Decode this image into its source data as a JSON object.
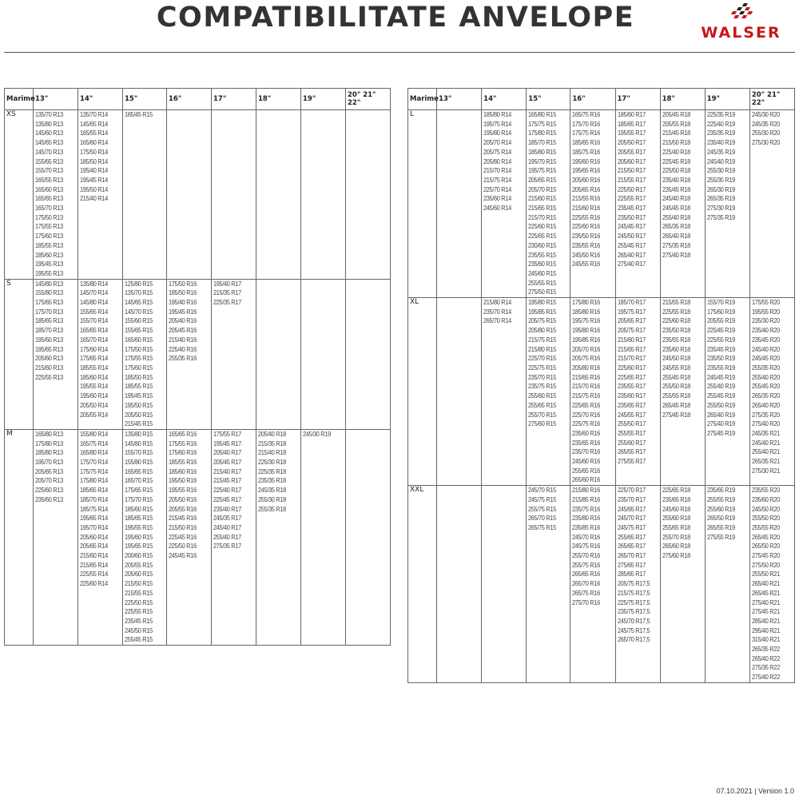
{
  "document": {
    "title": "COMPATIBILITATE ANVELOPE",
    "logo_text": "WALSER",
    "brand_color": "#c8161d",
    "footer": "07.10.2021 | Version 1.0"
  },
  "headers": [
    "Marime",
    "13\"",
    "14\"",
    "15\"",
    "16\"",
    "17\"",
    "18\"",
    "19\"",
    "20\" 21\" 22\""
  ],
  "left_table": [
    {
      "size": "XS",
      "cells": [
        [
          "135/70 R13",
          "135/80 R13",
          "145/60 R13",
          "145/65 R13",
          "145/70 R13",
          "155/65 R13",
          "155/70 R13",
          "165/55 R13",
          "165/60 R13",
          "165/65 R13",
          "165/70 R13",
          "175/50 R13",
          "175/55 R13",
          "175/60 R13",
          "185/55 R13",
          "185/60 R13",
          "195/45 R13",
          "195/55 R13"
        ],
        [
          "135/70 R14",
          "145/65 R14",
          "165/55 R14",
          "165/60 R14",
          "175/50 R14",
          "185/50 R14",
          "195/40 R14",
          "195/45 R14",
          "195/50 R14",
          "215/40 R14"
        ],
        [
          "185/45 R15"
        ],
        [],
        [],
        [],
        [],
        []
      ]
    },
    {
      "size": "S",
      "cells": [
        [
          "145/80 R13",
          "155/80 R13",
          "175/65 R13",
          "175/70 R13",
          "185/65 R13",
          "185/70 R13",
          "195/60 R13",
          "195/65 R13",
          "205/60 R13",
          "215/60 R13",
          "225/55 R13"
        ],
        [
          "135/80 R14",
          "145/70 R14",
          "145/80 R14",
          "155/65 R14",
          "155/70 R14",
          "165/65 R14",
          "165/70 R14",
          "175/60 R14",
          "175/65 R14",
          "185/55 R14",
          "185/60 R14",
          "195/55 R14",
          "195/60 R14",
          "205/50 R14",
          "205/55 R14"
        ],
        [
          "125/80 R15",
          "135/70 R15",
          "145/65 R15",
          "145/70 R15",
          "155/60 R15",
          "155/65 R15",
          "165/60 R15",
          "175/50 R15",
          "175/55 R15",
          "175/60 R15",
          "185/50 R15",
          "185/55 R15",
          "195/45 R15",
          "195/50 R15",
          "205/50 R15",
          "215/45 R15"
        ],
        [
          "175/50 R16",
          "185/50 R16",
          "195/40 R16",
          "195/45 R16",
          "205/40 R16",
          "205/45 R16",
          "215/40 R16",
          "225/40 R16",
          "255/35 R16"
        ],
        [
          "195/40 R17",
          "215/35 R17",
          "225/35 R17"
        ],
        [],
        [],
        []
      ]
    },
    {
      "size": "M",
      "cells": [
        [
          "165/80 R13",
          "175/80 R13",
          "185/80 R13",
          "195/70 R13",
          "205/65 R13",
          "205/70 R13",
          "225/60 R13",
          "235/60 R13"
        ],
        [
          "155/80 R14",
          "165/75 R14",
          "165/80 R14",
          "175/70 R14",
          "175/75 R14",
          "175/80 R14",
          "185/65 R14",
          "185/70 R14",
          "185/75 R14",
          "195/65 R14",
          "195/70 R14",
          "205/60 R14",
          "205/65 R14",
          "215/60 R14",
          "215/65 R14",
          "225/55 R14",
          "225/60 R14"
        ],
        [
          "135/80 R15",
          "145/80 R15",
          "155/70 R15",
          "155/80 R15",
          "165/65 R15",
          "165/70 R15",
          "175/65 R15",
          "175/70 R15",
          "185/60 R15",
          "185/65 R15",
          "195/55 R15",
          "195/60 R15",
          "195/65 R15",
          "200/60 R15",
          "205/55 R15",
          "205/60 R15",
          "215/50 R15",
          "215/55 R15",
          "225/50 R15",
          "225/55 R15",
          "235/45 R15",
          "245/50 R15",
          "255/45 R15"
        ],
        [
          "165/65 R16",
          "175/55 R16",
          "175/60 R16",
          "185/55 R16",
          "185/60 R16",
          "195/50 R16",
          "195/55 R16",
          "205/50 R16",
          "205/55 R16",
          "215/45 R16",
          "215/50 R16",
          "225/45 R16",
          "225/50 R16",
          "245/45 R16"
        ],
        [
          "175/55 R17",
          "195/45 R17",
          "205/40 R17",
          "205/45 R17",
          "215/40 R17",
          "215/45 R17",
          "225/40 R17",
          "225/45 R17",
          "235/40 R17",
          "245/35 R17",
          "245/40 R17",
          "255/40 R17",
          "275/35 R17"
        ],
        [
          "205/40 R18",
          "215/35 R18",
          "215/40 R18",
          "225/30 R18",
          "225/35 R18",
          "235/35 R18",
          "245/35 R18",
          "255/30 R18",
          "255/35 R18"
        ],
        [
          "245/30 R19"
        ],
        []
      ]
    }
  ],
  "right_table": [
    {
      "size": "L",
      "cells": [
        [],
        [
          "185/80 R14",
          "195/75 R14",
          "195/80 R14",
          "205/70 R14",
          "205/75 R14",
          "205/80 R14",
          "215/70 R14",
          "215/75 R14",
          "225/70 R14",
          "235/60 R14",
          "245/60 R14"
        ],
        [
          "165/80 R15",
          "175/75 R15",
          "175/80 R15",
          "185/70 R15",
          "185/80 R15",
          "195/70 R15",
          "195/75 R15",
          "205/65 R15",
          "205/70 R15",
          "215/60 R15",
          "215/65 R15",
          "215/70 R15",
          "225/60 R15",
          "225/65 R15",
          "230/60 R15",
          "235/55 R15",
          "235/60 R15",
          "245/60 R15",
          "255/55 R15",
          "275/50 R15"
        ],
        [
          "165/75 R16",
          "175/70 R16",
          "175/75 R16",
          "185/65 R16",
          "185/75 R16",
          "195/60 R16",
          "195/65 R16",
          "205/60 R16",
          "205/65 R16",
          "215/55 R16",
          "215/60 R16",
          "225/55 R16",
          "225/60 R16",
          "235/50 R16",
          "235/55 R16",
          "245/50 R16",
          "245/55 R16"
        ],
        [
          "185/60 R17",
          "185/65 R17",
          "195/55 R17",
          "205/50 R17",
          "205/55 R17",
          "205/60 R17",
          "215/50 R17",
          "215/55 R17",
          "225/50 R17",
          "225/55 R17",
          "235/45 R17",
          "235/50 R17",
          "245/45 R17",
          "245/50 R17",
          "255/45 R17",
          "265/40 R17",
          "275/40 R17"
        ],
        [
          "205/45 R18",
          "205/55 R18",
          "215/45 R18",
          "215/50 R18",
          "225/40 R18",
          "225/45 R18",
          "225/50 R18",
          "235/40 R18",
          "235/45 R18",
          "245/40 R18",
          "245/45 R18",
          "255/40 R18",
          "265/35 R18",
          "265/40 R18",
          "275/35 R18",
          "275/40 R18"
        ],
        [
          "225/35 R19",
          "225/40 R19",
          "235/35 R19",
          "235/40 R19",
          "245/35 R19",
          "245/40 R19",
          "255/30 R19",
          "255/35 R19",
          "265/30 R19",
          "265/35 R19",
          "275/30 R19",
          "275/35 R19"
        ],
        [
          "245/30 R20",
          "245/35 R20",
          "255/30 R20",
          "275/30 R20"
        ]
      ]
    },
    {
      "size": "XL",
      "cells": [
        [],
        [
          "215/80 R14",
          "235/70 R14",
          "265/70 R14"
        ],
        [
          "195/80 R15",
          "195/85 R15",
          "205/75 R15",
          "205/80 R15",
          "215/75 R15",
          "215/80 R15",
          "225/70 R15",
          "225/75 R15",
          "235/70 R15",
          "235/75 R15",
          "255/60 R15",
          "255/65 R15",
          "255/70 R15",
          "275/60 R15"
        ],
        [
          "175/80 R16",
          "185/80 R16",
          "195/75 R16",
          "195/80 R16",
          "195/85 R16",
          "205/70 R16",
          "205/75 R16",
          "205/80 R16",
          "215/65 R16",
          "215/70 R16",
          "215/75 R16",
          "225/65 R16",
          "225/70 R16",
          "225/75 R16",
          "235/60 R16",
          "235/65 R16",
          "235/70 R16",
          "245/60 R16",
          "255/65 R16",
          "265/60 R16"
        ],
        [
          "185/70 R17",
          "195/75 R17",
          "205/65 R17",
          "205/75 R17",
          "215/60 R17",
          "215/65 R17",
          "215/70 R17",
          "225/60 R17",
          "225/65 R17",
          "235/55 R17",
          "235/60 R17",
          "235/65 R17",
          "245/55 R17",
          "255/50 R17",
          "255/55 R17",
          "255/60 R17",
          "265/55 R17",
          "275/55 R17"
        ],
        [
          "215/55 R18",
          "225/55 R18",
          "225/60 R18",
          "235/50 R18",
          "235/55 R18",
          "235/60 R18",
          "245/50 R18",
          "245/55 R18",
          "255/45 R18",
          "255/50 R18",
          "255/55 R18",
          "265/45 R18",
          "275/45 R18"
        ],
        [
          "155/70 R19",
          "175/60 R19",
          "205/55 R19",
          "225/45 R19",
          "225/55 R19",
          "235/45 R19",
          "235/50 R19",
          "235/55 R19",
          "245/45 R19",
          "255/40 R19",
          "255/45 R19",
          "255/50 R19",
          "265/40 R19",
          "275/40 R19",
          "275/45 R19"
        ],
        [
          "175/55 R20",
          "195/55 R20",
          "235/30 R20",
          "235/40 R20",
          "235/45 R20",
          "245/40 R20",
          "245/45 R20",
          "255/35 R20",
          "255/40 R20",
          "255/45 R20",
          "265/35 R20",
          "265/40 R20",
          "275/35 R20",
          "275/40 R20",
          "245/35 R21",
          "245/40 R21",
          "255/40 R21",
          "265/35 R21",
          "275/30 R21"
        ]
      ]
    },
    {
      "size": "XXL",
      "cells": [
        [],
        [],
        [
          "245/70 R15",
          "245/75 R15",
          "255/75 R15",
          "265/70 R15",
          "265/75 R15"
        ],
        [
          "215/80 R16",
          "215/85 R16",
          "235/75 R16",
          "235/80 R16",
          "235/85 R16",
          "245/70 R16",
          "245/75 R16",
          "255/70 R16",
          "255/75 R16",
          "265/65 R16",
          "265/70 R16",
          "265/75 R16",
          "275/70 R16"
        ],
        [
          "225/70 R17",
          "235/70 R17",
          "245/65 R17",
          "245/70 R17",
          "245/75 R17",
          "255/65 R17",
          "265/65 R17",
          "265/70 R17",
          "275/65 R17",
          "285/65 R17",
          "205/75 R17,5",
          "215/75 R17,5",
          "225/75 R17,5",
          "235/75 R17,5",
          "245/70 R17,5",
          "245/75 R17,5",
          "265/70 R17,5"
        ],
        [
          "225/65 R18",
          "235/65 R18",
          "245/60 R18",
          "255/60 R18",
          "255/65 R18",
          "255/70 R18",
          "265/60 R18",
          "275/60 R18"
        ],
        [
          "235/65 R19",
          "255/55 R19",
          "255/60 R19",
          "265/50 R19",
          "265/55 R19",
          "275/55 R19"
        ],
        [
          "235/55 R20",
          "235/60 R20",
          "245/50 R20",
          "255/50 R20",
          "255/55 R20",
          "265/45 R20",
          "265/50 R20",
          "275/45 R20",
          "275/50 R20",
          "255/50 R21",
          "265/40 R21",
          "265/45 R21",
          "275/40 R21",
          "275/45 R21",
          "285/40 R21",
          "295/40 R21",
          "315/40 R21",
          "265/35 R22",
          "265/40 R22",
          "275/35 R22",
          "275/40 R22"
        ]
      ]
    }
  ]
}
